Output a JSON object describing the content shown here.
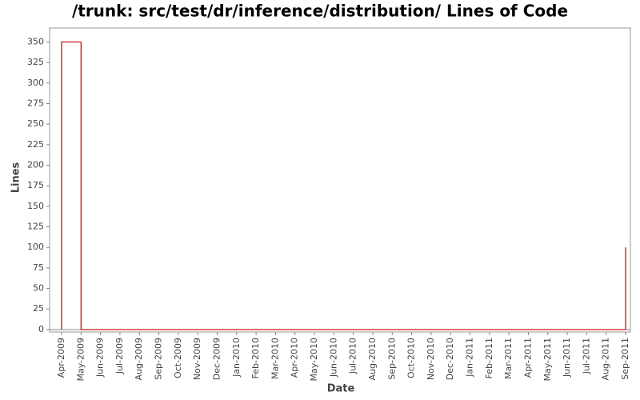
{
  "chart_data": {
    "type": "step",
    "title": "/trunk: src/test/dr/inference/distribution/ Lines of Code",
    "x_label": "Date",
    "y_label": "Lines",
    "x": [
      "2009-04",
      "2009-05",
      "2011-08",
      "2011-09"
    ],
    "series": [
      {
        "name": "Lines",
        "color": "#c00000",
        "values": [
          350,
          0,
          0,
          100
        ]
      }
    ],
    "xlim": [
      "2009-04",
      "2011-09"
    ],
    "xticks": [
      {
        "value": "2009-04",
        "label": "Apr-2009"
      },
      {
        "value": "2009-05",
        "label": "May-2009"
      },
      {
        "value": "2009-06",
        "label": "Jun-2009"
      },
      {
        "value": "2009-07",
        "label": "Jul-2009"
      },
      {
        "value": "2009-08",
        "label": "Aug-2009"
      },
      {
        "value": "2009-09",
        "label": "Sep-2009"
      },
      {
        "value": "2009-10",
        "label": "Oct-2009"
      },
      {
        "value": "2009-11",
        "label": "Nov-2009"
      },
      {
        "value": "2009-12",
        "label": "Dec-2009"
      },
      {
        "value": "2010-01",
        "label": "Jan-2010"
      },
      {
        "value": "2010-02",
        "label": "Feb-2010"
      },
      {
        "value": "2010-03",
        "label": "Mar-2010"
      },
      {
        "value": "2010-04",
        "label": "Apr-2010"
      },
      {
        "value": "2010-05",
        "label": "May-2010"
      },
      {
        "value": "2010-06",
        "label": "Jun-2010"
      },
      {
        "value": "2010-07",
        "label": "Jul-2010"
      },
      {
        "value": "2010-08",
        "label": "Aug-2010"
      },
      {
        "value": "2010-09",
        "label": "Sep-2010"
      },
      {
        "value": "2010-10",
        "label": "Oct-2010"
      },
      {
        "value": "2010-11",
        "label": "Nov-2010"
      },
      {
        "value": "2010-12",
        "label": "Dec-2010"
      },
      {
        "value": "2011-01",
        "label": "Jan-2011"
      },
      {
        "value": "2011-02",
        "label": "Feb-2011"
      },
      {
        "value": "2011-03",
        "label": "Mar-2011"
      },
      {
        "value": "2011-04",
        "label": "Apr-2011"
      },
      {
        "value": "2011-05",
        "label": "May-2011"
      },
      {
        "value": "2011-06",
        "label": "Jun-2011"
      },
      {
        "value": "2011-07",
        "label": "Jul-2011"
      },
      {
        "value": "2011-08",
        "label": "Aug-2011"
      },
      {
        "value": "2011-09",
        "label": "Sep-2011"
      }
    ],
    "ylim": [
      -3,
      367
    ],
    "yticks": [
      0,
      25,
      50,
      75,
      100,
      125,
      150,
      175,
      200,
      225,
      250,
      275,
      300,
      325,
      350
    ],
    "grid": false
  }
}
